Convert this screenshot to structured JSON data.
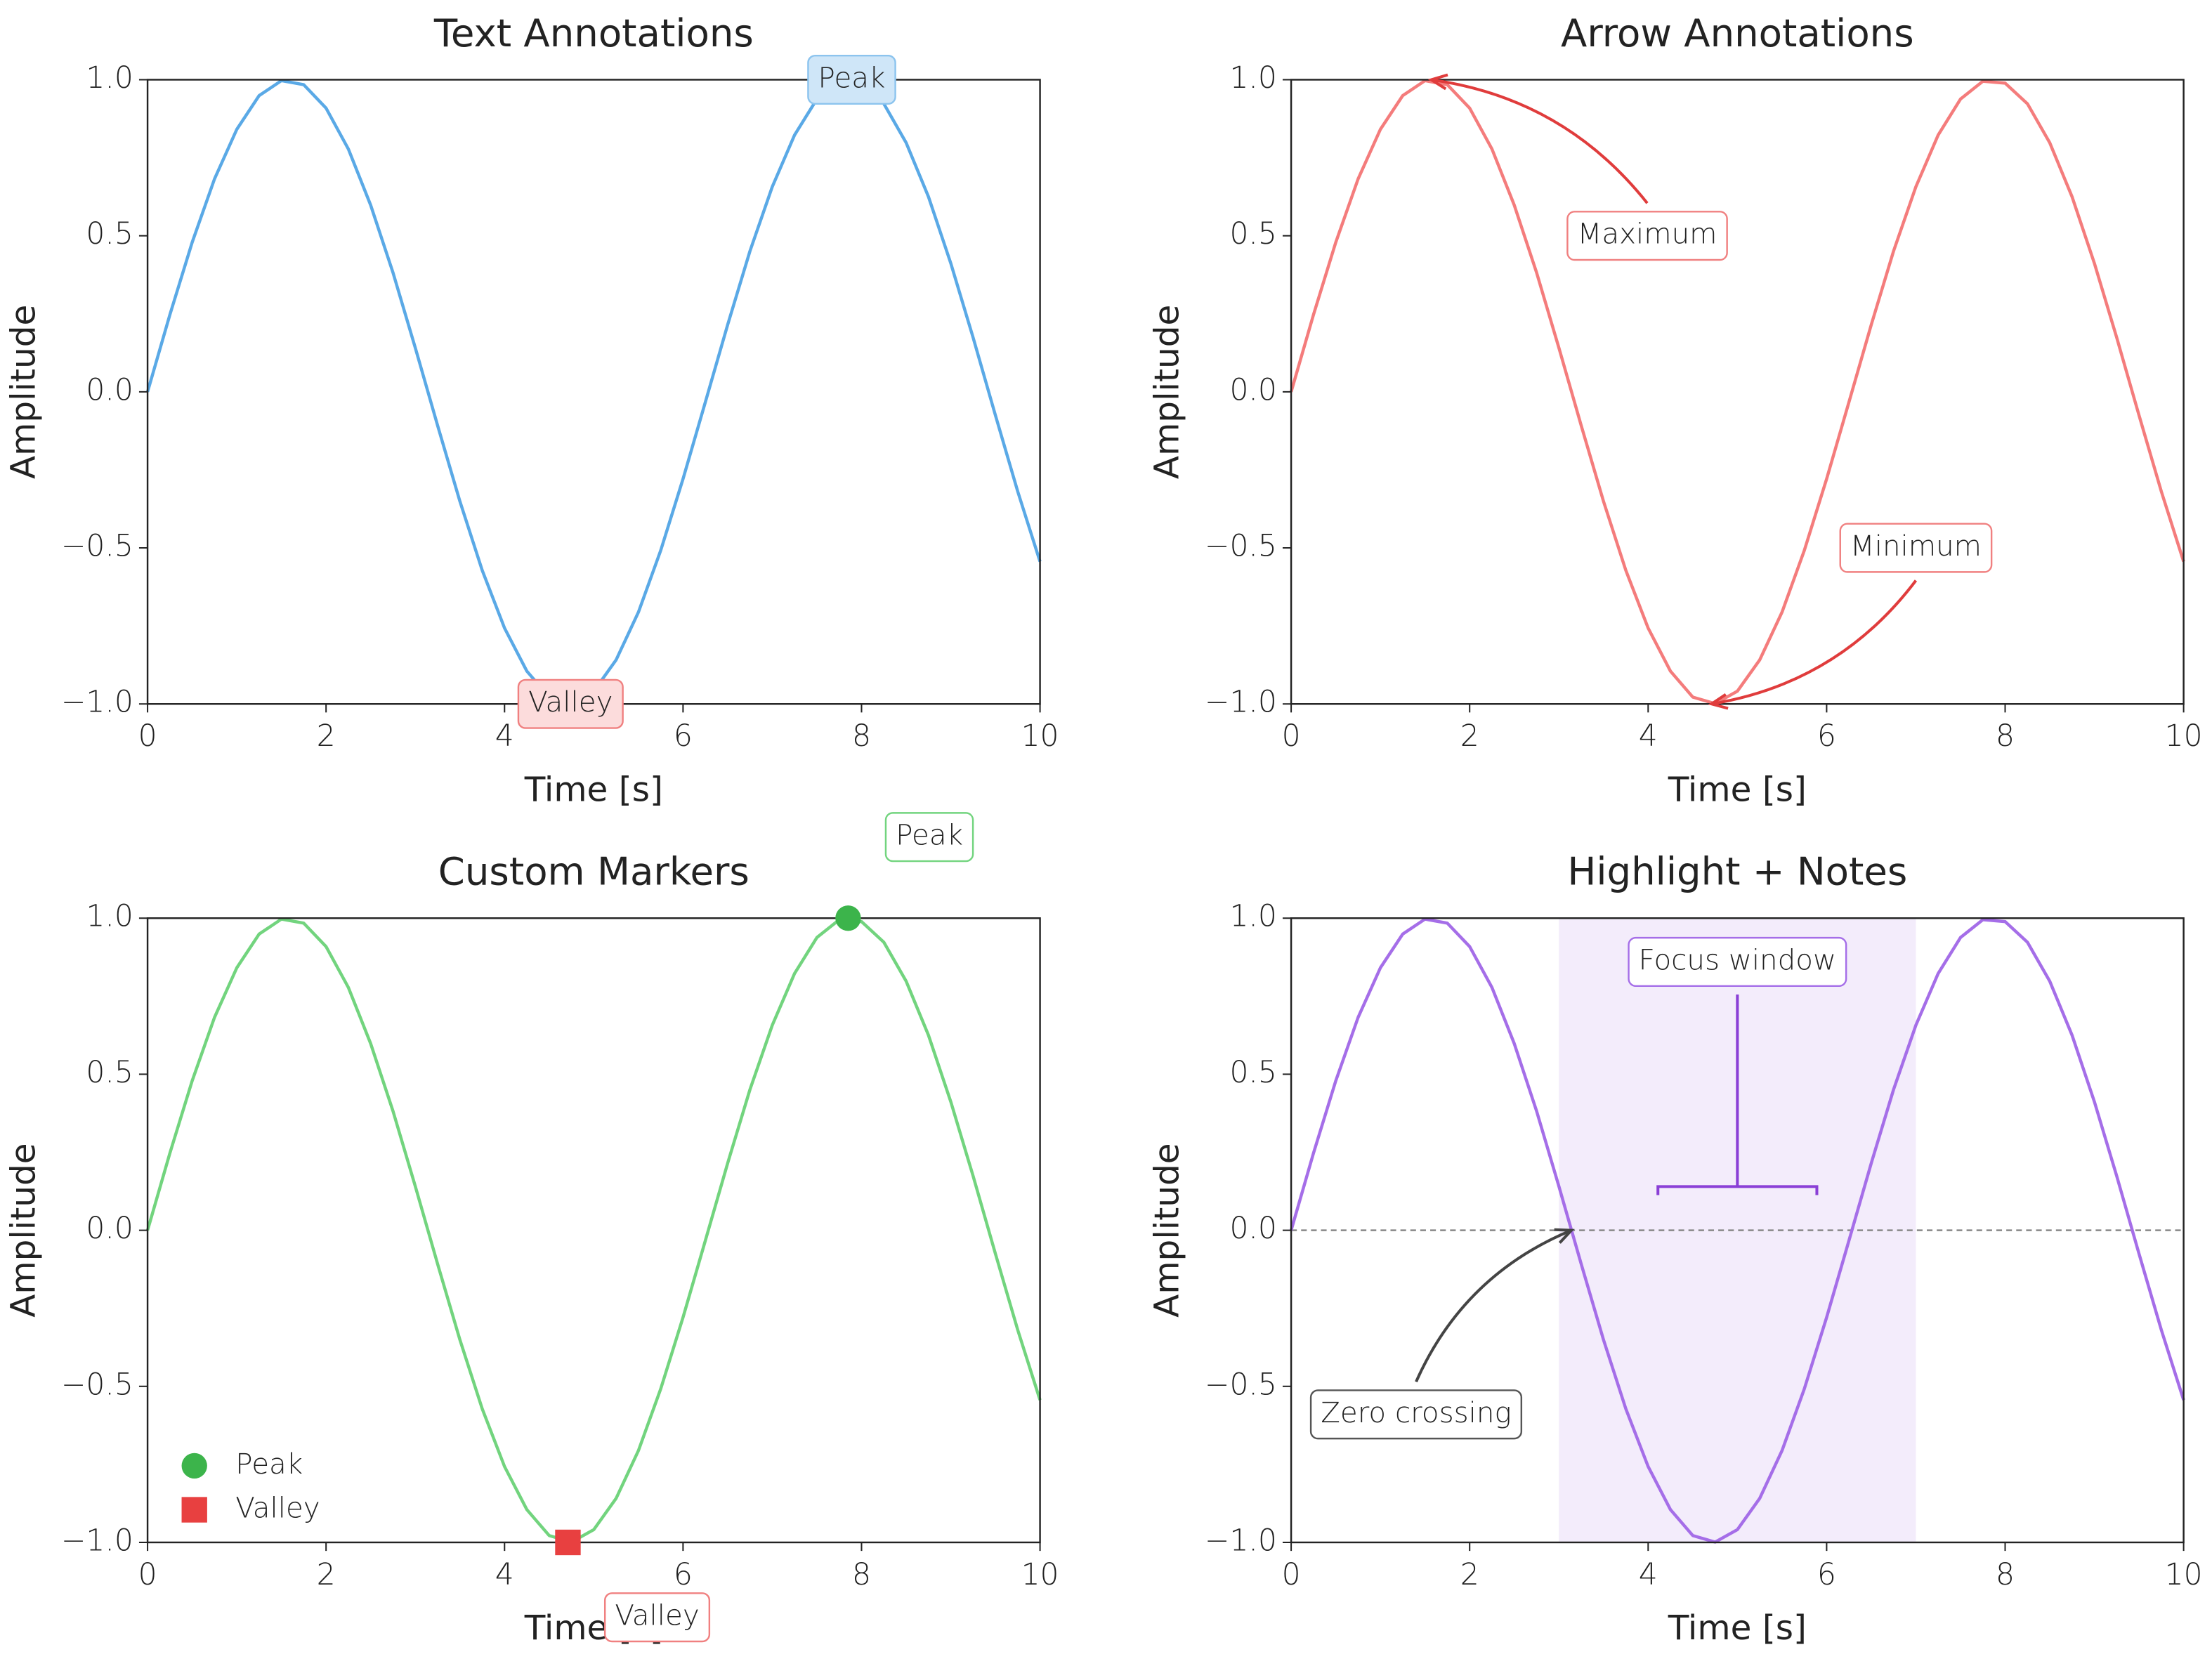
{
  "chart_data": [
    {
      "type": "line",
      "title": "Text Annotations",
      "xlabel": "Time [s]",
      "ylabel": "Amplitude",
      "color": "#5aa9e6",
      "x": [
        0,
        0.25,
        0.5,
        0.75,
        1,
        1.25,
        1.5,
        1.75,
        2,
        2.25,
        2.5,
        2.75,
        3,
        3.25,
        3.5,
        3.75,
        4,
        4.25,
        4.5,
        4.75,
        5,
        5.25,
        5.5,
        5.75,
        6,
        6.25,
        6.5,
        6.75,
        7,
        7.25,
        7.5,
        7.75,
        8,
        8.25,
        8.5,
        8.75,
        9,
        9.25,
        9.5,
        9.75,
        10
      ],
      "values": [
        0,
        0.247,
        0.479,
        0.682,
        0.841,
        0.949,
        0.997,
        0.984,
        0.909,
        0.778,
        0.598,
        0.382,
        0.141,
        -0.108,
        -0.351,
        -0.572,
        -0.757,
        -0.895,
        -0.978,
        -0.999,
        -0.959,
        -0.859,
        -0.706,
        -0.508,
        -0.279,
        -0.033,
        0.215,
        0.451,
        0.657,
        0.823,
        0.938,
        0.995,
        0.989,
        0.923,
        0.798,
        0.625,
        0.412,
        0.174,
        -0.075,
        -0.319,
        -0.544
      ],
      "xlim": [
        0,
        10
      ],
      "xticks": [
        0,
        2,
        4,
        6,
        8,
        10
      ],
      "ylim": [
        -1,
        1
      ],
      "yticks": [
        {
          "value": -1,
          "label": "−1.0"
        },
        {
          "value": -0.5,
          "label": "−0.5"
        },
        {
          "value": 0,
          "label": "0.0"
        },
        {
          "value": 0.5,
          "label": "0.5"
        },
        {
          "value": 1,
          "label": "1.0"
        }
      ],
      "annotations": [
        {
          "text": "Peak",
          "x": 7.89,
          "y": 1.0,
          "facecolor": "#cfe6f8",
          "edgecolor": "#8cc4ee"
        },
        {
          "text": "Valley",
          "x": 4.74,
          "y": -1.0,
          "facecolor": "#fcdcdc",
          "edgecolor": "#f08080"
        }
      ]
    },
    {
      "type": "line",
      "title": "Arrow Annotations",
      "xlabel": "Time [s]",
      "ylabel": "Amplitude",
      "color": "#f47c7c",
      "x": [
        0,
        0.25,
        0.5,
        0.75,
        1,
        1.25,
        1.5,
        1.75,
        2,
        2.25,
        2.5,
        2.75,
        3,
        3.25,
        3.5,
        3.75,
        4,
        4.25,
        4.5,
        4.75,
        5,
        5.25,
        5.5,
        5.75,
        6,
        6.25,
        6.5,
        6.75,
        7,
        7.25,
        7.5,
        7.75,
        8,
        8.25,
        8.5,
        8.75,
        9,
        9.25,
        9.5,
        9.75,
        10
      ],
      "values": [
        0,
        0.247,
        0.479,
        0.682,
        0.841,
        0.949,
        0.997,
        0.984,
        0.909,
        0.778,
        0.598,
        0.382,
        0.141,
        -0.108,
        -0.351,
        -0.572,
        -0.757,
        -0.895,
        -0.978,
        -0.999,
        -0.959,
        -0.859,
        -0.706,
        -0.508,
        -0.279,
        -0.033,
        0.215,
        0.451,
        0.657,
        0.823,
        0.938,
        0.995,
        0.989,
        0.923,
        0.798,
        0.625,
        0.412,
        0.174,
        -0.075,
        -0.319,
        -0.544
      ],
      "xlim": [
        0,
        10
      ],
      "xticks": [
        0,
        2,
        4,
        6,
        8,
        10
      ],
      "ylim": [
        -1,
        1
      ],
      "yticks": [
        {
          "value": -1,
          "label": "−1.0"
        },
        {
          "value": -0.5,
          "label": "−0.5"
        },
        {
          "value": 0,
          "label": "0.0"
        },
        {
          "value": 0.5,
          "label": "0.5"
        },
        {
          "value": 1,
          "label": "1.0"
        }
      ],
      "annotations": [
        {
          "text": "Maximum",
          "x": 3.99,
          "y": 0.5,
          "xy": [
            1.57,
            1.0
          ],
          "rad": 0.2,
          "facecolor": "#ffffff",
          "edgecolor": "#f08080",
          "arrowcolor": "#e03c3c"
        },
        {
          "text": "Minimum",
          "x": 7.0,
          "y": -0.5,
          "xy": [
            4.71,
            -1.0
          ],
          "rad": -0.2,
          "facecolor": "#ffffff",
          "edgecolor": "#f08080",
          "arrowcolor": "#e03c3c"
        }
      ]
    },
    {
      "type": "line",
      "title": "Custom Markers",
      "xlabel": "Time [s]",
      "ylabel": "Amplitude",
      "color": "#72d47e",
      "x": [
        0,
        0.25,
        0.5,
        0.75,
        1,
        1.25,
        1.5,
        1.75,
        2,
        2.25,
        2.5,
        2.75,
        3,
        3.25,
        3.5,
        3.75,
        4,
        4.25,
        4.5,
        4.75,
        5,
        5.25,
        5.5,
        5.75,
        6,
        6.25,
        6.5,
        6.75,
        7,
        7.25,
        7.5,
        7.75,
        8,
        8.25,
        8.5,
        8.75,
        9,
        9.25,
        9.5,
        9.75,
        10
      ],
      "values": [
        0,
        0.247,
        0.479,
        0.682,
        0.841,
        0.949,
        0.997,
        0.984,
        0.909,
        0.778,
        0.598,
        0.382,
        0.141,
        -0.108,
        -0.351,
        -0.572,
        -0.757,
        -0.895,
        -0.978,
        -0.999,
        -0.959,
        -0.859,
        -0.706,
        -0.508,
        -0.279,
        -0.033,
        0.215,
        0.451,
        0.657,
        0.823,
        0.938,
        0.995,
        0.989,
        0.923,
        0.798,
        0.625,
        0.412,
        0.174,
        -0.075,
        -0.319,
        -0.544
      ],
      "xlim": [
        0,
        10
      ],
      "xticks": [
        0,
        2,
        4,
        6,
        8,
        10
      ],
      "ylim": [
        -1,
        1
      ],
      "yticks": [
        {
          "value": -1,
          "label": "−1.0"
        },
        {
          "value": -0.5,
          "label": "−0.5"
        },
        {
          "value": 0,
          "label": "0.0"
        },
        {
          "value": 0.5,
          "label": "0.5"
        },
        {
          "value": 1,
          "label": "1.0"
        }
      ],
      "markers": [
        {
          "name": "Peak",
          "x": 7.85,
          "y": 1.0,
          "shape": "circle",
          "color": "#3cb44b"
        },
        {
          "name": "Valley",
          "x": 4.71,
          "y": -1.0,
          "shape": "square",
          "color": "#e84040"
        }
      ],
      "legend": "lower left",
      "annotations": [
        {
          "text": "Peak",
          "x": 8.76,
          "y": 1.26,
          "facecolor": "#ffffff",
          "edgecolor": "#72d47e"
        },
        {
          "text": "Valley",
          "x": 5.71,
          "y": -1.24,
          "facecolor": "#ffffff",
          "edgecolor": "#f08080"
        }
      ]
    },
    {
      "type": "line",
      "title": "Highlight + Notes",
      "xlabel": "Time [s]",
      "ylabel": "Amplitude",
      "color": "#a56ee8",
      "x": [
        0,
        0.25,
        0.5,
        0.75,
        1,
        1.25,
        1.5,
        1.75,
        2,
        2.25,
        2.5,
        2.75,
        3,
        3.25,
        3.5,
        3.75,
        4,
        4.25,
        4.5,
        4.75,
        5,
        5.25,
        5.5,
        5.75,
        6,
        6.25,
        6.5,
        6.75,
        7,
        7.25,
        7.5,
        7.75,
        8,
        8.25,
        8.5,
        8.75,
        9,
        9.25,
        9.5,
        9.75,
        10
      ],
      "values": [
        0,
        0.247,
        0.479,
        0.682,
        0.841,
        0.949,
        0.997,
        0.984,
        0.909,
        0.778,
        0.598,
        0.382,
        0.141,
        -0.108,
        -0.351,
        -0.572,
        -0.757,
        -0.895,
        -0.978,
        -0.999,
        -0.959,
        -0.859,
        -0.706,
        -0.508,
        -0.279,
        -0.033,
        0.215,
        0.451,
        0.657,
        0.823,
        0.938,
        0.995,
        0.989,
        0.923,
        0.798,
        0.625,
        0.412,
        0.174,
        -0.075,
        -0.319,
        -0.544
      ],
      "xlim": [
        0,
        10
      ],
      "xticks": [
        0,
        2,
        4,
        6,
        8,
        10
      ],
      "ylim": [
        -1,
        1
      ],
      "yticks": [
        {
          "value": -1,
          "label": "−1.0"
        },
        {
          "value": -0.5,
          "label": "−0.5"
        },
        {
          "value": 0,
          "label": "0.0"
        },
        {
          "value": 0.5,
          "label": "0.5"
        },
        {
          "value": 1,
          "label": "1.0"
        }
      ],
      "span": [
        3,
        7
      ],
      "span_color": "#f3ecfb",
      "hline": 0,
      "annotations": [
        {
          "text": "Focus window",
          "x": 5.0,
          "y": 0.86,
          "xy": [
            5.0,
            0.14
          ],
          "arrowstyle": "bracket",
          "facecolor": "#ffffff",
          "edgecolor": "#a56ee8",
          "arrowcolor": "#8a3fd6"
        },
        {
          "text": "Zero crossing",
          "x": 1.4,
          "y": -0.59,
          "xy": [
            3.14,
            0.0
          ],
          "rad": -0.2,
          "facecolor": "#ffffff",
          "edgecolor": "#555555",
          "arrowcolor": "#444444"
        }
      ]
    }
  ]
}
